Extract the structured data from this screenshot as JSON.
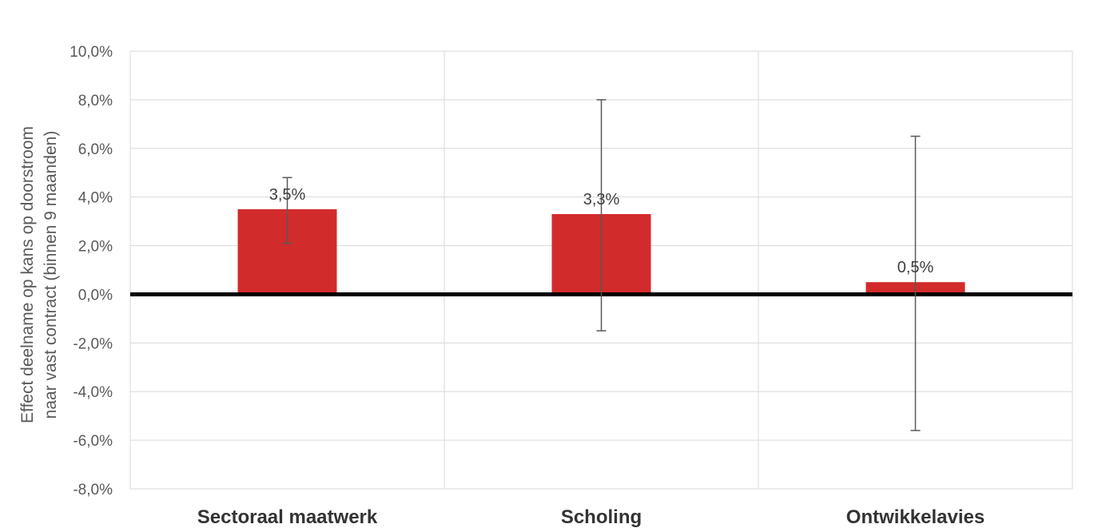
{
  "chart_data": {
    "type": "bar",
    "categories": [
      "Sectoraal maatwerk",
      "Scholing",
      "Ontwikkelavies"
    ],
    "series": [
      {
        "values": [
          3.5,
          3.3,
          0.5
        ],
        "data_labels": [
          "3,5%",
          "3,3%",
          "0,5%"
        ],
        "error_low": [
          2.1,
          -1.5,
          -5.6
        ],
        "error_high": [
          4.8,
          8.0,
          6.5
        ],
        "color": "#d22b2b"
      }
    ],
    "ylim": [
      -8,
      10
    ],
    "yticks": [
      10,
      8,
      6,
      4,
      2,
      0,
      -2,
      -4,
      -6,
      -8
    ],
    "ytick_labels": [
      "10,0%",
      "8,0%",
      "6,0%",
      "4,0%",
      "2,0%",
      "0,0%",
      "-2,0%",
      "-4,0%",
      "-6,0%",
      "-8,0%"
    ],
    "ylabel_lines": [
      "Effect deelname op kans op doorstroom",
      "naar vast contract  (binnen 9 maanden)"
    ],
    "xlabel": "",
    "title": "",
    "grid": true,
    "legend": "none",
    "colors": {
      "bar": "#d22b2b",
      "zero_line": "#000000",
      "grid": "#d9d9d9",
      "error_bar": "#595959"
    }
  }
}
